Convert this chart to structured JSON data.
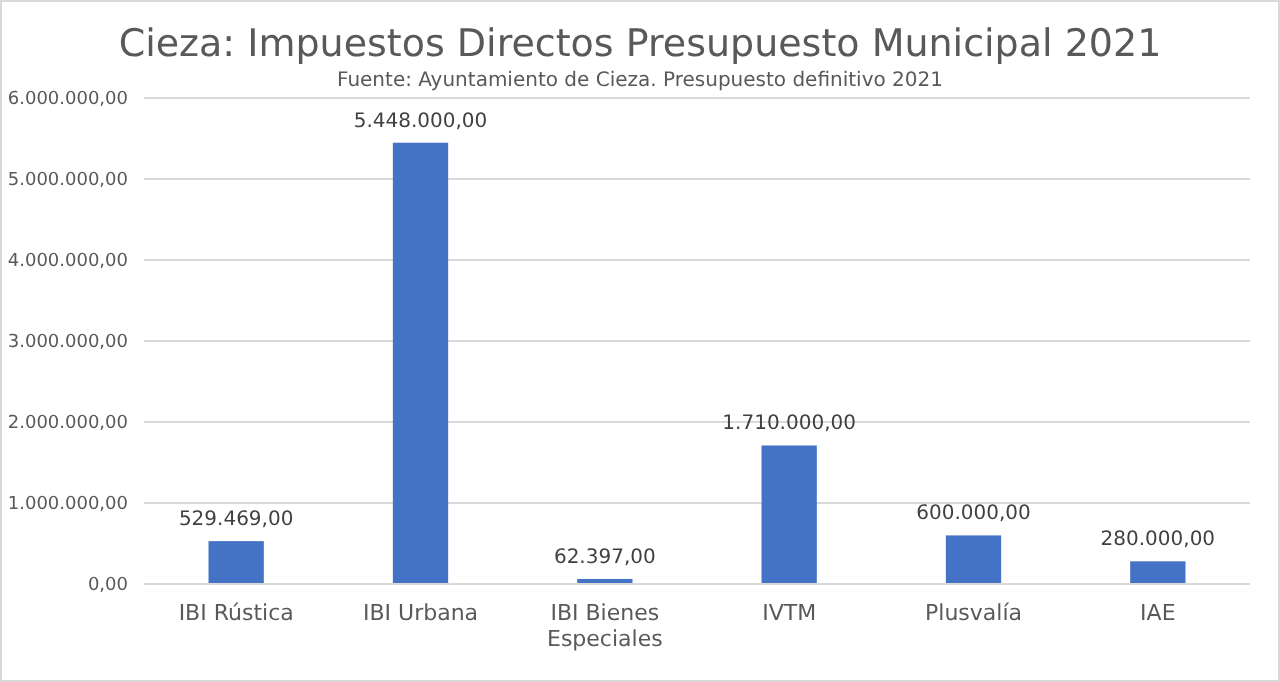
{
  "chart_data": {
    "type": "bar",
    "title": "Cieza: Impuestos Directos Presupuesto Municipal 2021",
    "subtitle": "Fuente: Ayuntamiento de Cieza. Presupuesto definitivo 2021",
    "categories": [
      "IBI Rústica",
      "IBI Urbana",
      "IBI Bienes Especiales",
      "IVTM",
      "Plusvalía",
      "IAE"
    ],
    "values": [
      529469,
      5448000,
      62397,
      1710000,
      600000,
      280000
    ],
    "value_labels": [
      "529.469,00",
      "5.448.000,00",
      "62.397,00",
      "1.710.000,00",
      "600.000,00",
      "280.000,00"
    ],
    "color": "#4472c4",
    "ylim": [
      0,
      6000000
    ],
    "yticks": [
      {
        "value": 0,
        "label": "0,00"
      },
      {
        "value": 1000000,
        "label": "1.000.000,00"
      },
      {
        "value": 2000000,
        "label": "2.000.000,00"
      },
      {
        "value": 3000000,
        "label": "3.000.000,00"
      },
      {
        "value": 4000000,
        "label": "4.000.000,00"
      },
      {
        "value": 5000000,
        "label": "5.000.000,00"
      },
      {
        "value": 6000000,
        "label": "6.000.000,00"
      }
    ],
    "grid": "y"
  }
}
